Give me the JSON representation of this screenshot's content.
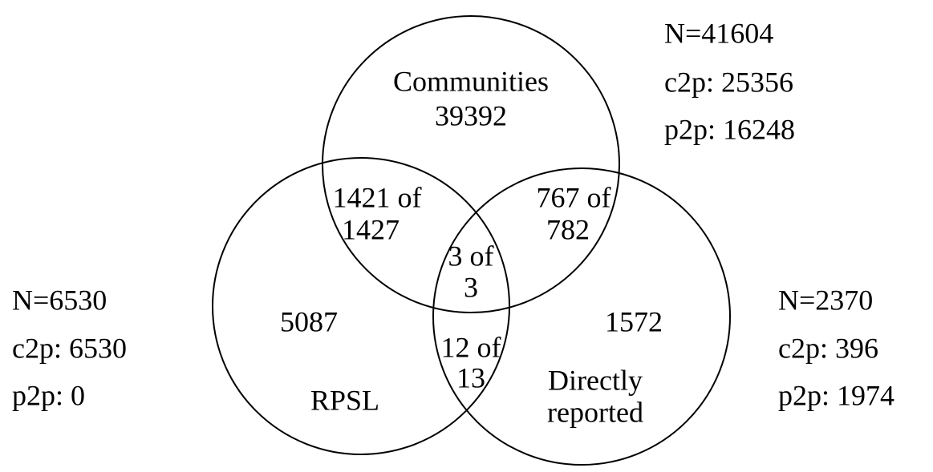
{
  "sets": [
    {
      "name": [
        "Communities"
      ],
      "count": "39392",
      "stats": [
        "N=41604",
        "c2p: 25356",
        "p2p: 16248"
      ]
    },
    {
      "name": [
        "RPSL"
      ],
      "count": "5087",
      "stats": [
        "N=6530",
        "c2p: 6530",
        "p2p: 0"
      ]
    },
    {
      "name": [
        "Directly",
        "reported"
      ],
      "count": "1572",
      "stats": [
        "N=2370",
        "c2p: 396",
        "p2p: 1974"
      ]
    }
  ],
  "intersections": [
    {
      "lines": [
        "1421 of",
        "1427"
      ]
    },
    {
      "lines": [
        "767 of",
        "782"
      ]
    },
    {
      "lines": [
        "3 of",
        "3"
      ]
    },
    {
      "lines": [
        "12 of",
        "13"
      ]
    }
  ]
}
